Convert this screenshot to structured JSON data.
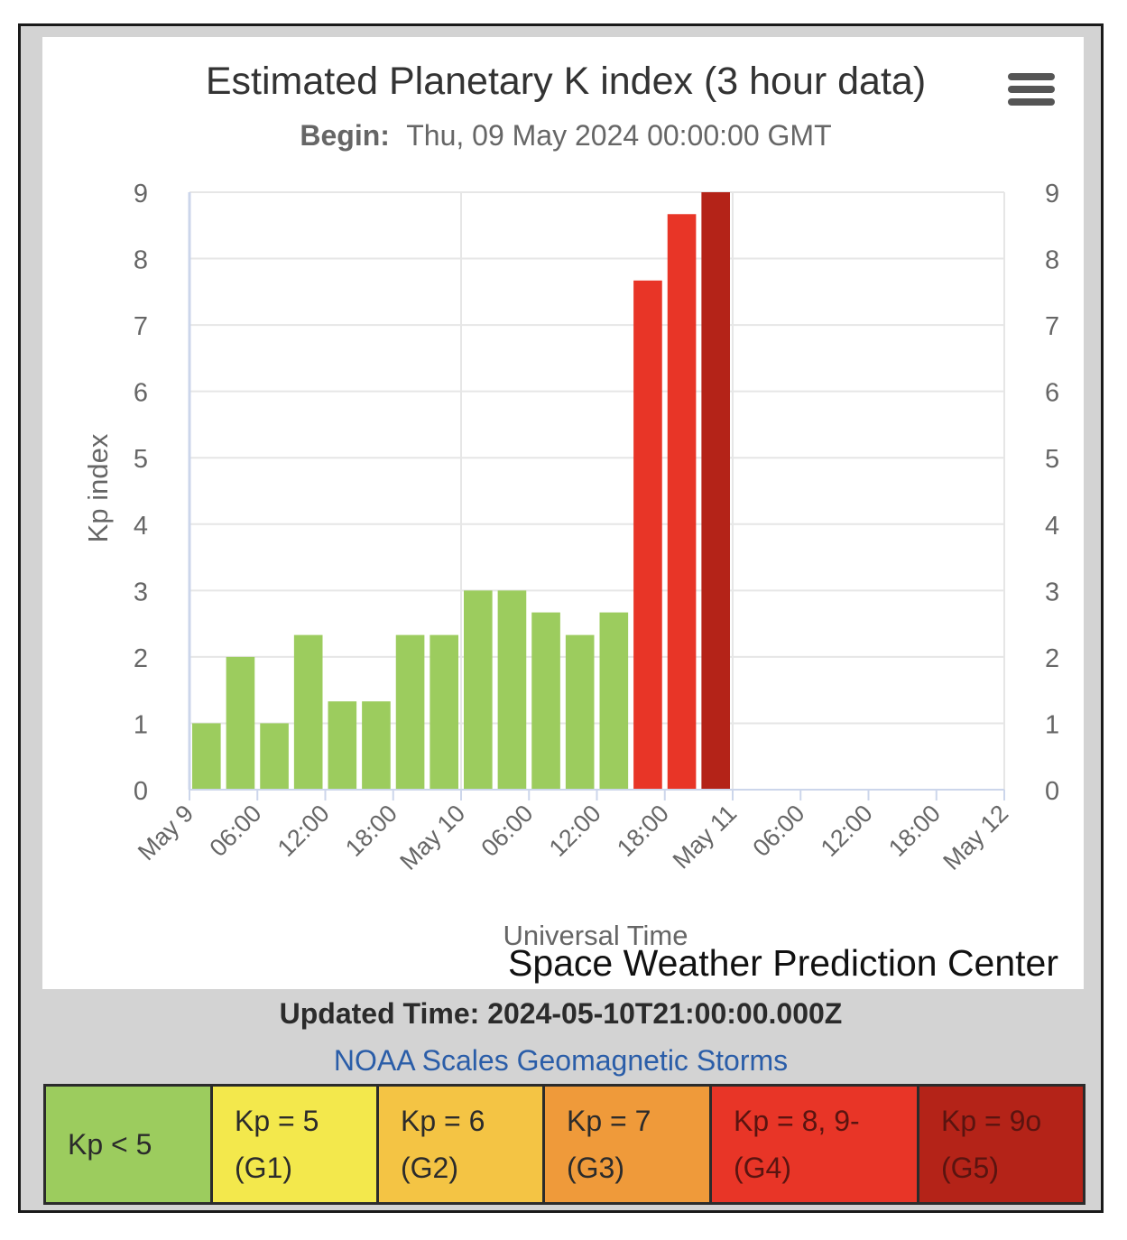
{
  "chart": {
    "title": "Estimated Planetary K index (3 hour data)",
    "subtitle_label": "Begin:",
    "subtitle_value": "Thu, 09 May 2024 00:00:00 GMT",
    "credit": "Space Weather Prediction Center"
  },
  "chart_data": {
    "type": "bar",
    "title": "Estimated Planetary K index (3 hour data)",
    "xlabel": "Universal Time",
    "ylabel": "Kp index",
    "ylim": [
      0,
      9
    ],
    "yticks": [
      0,
      1,
      2,
      3,
      4,
      5,
      6,
      7,
      8,
      9
    ],
    "x_range": [
      "2024-05-09T00:00Z",
      "2024-05-12T00:00Z"
    ],
    "xtick_labels": [
      "May 9",
      "06:00",
      "12:00",
      "18:00",
      "May 10",
      "06:00",
      "12:00",
      "18:00",
      "May 11",
      "06:00",
      "12:00",
      "18:00",
      "May 12"
    ],
    "interval_hours": 3,
    "categories": [
      "2024-05-09T00:00Z",
      "2024-05-09T03:00Z",
      "2024-05-09T06:00Z",
      "2024-05-09T09:00Z",
      "2024-05-09T12:00Z",
      "2024-05-09T15:00Z",
      "2024-05-09T18:00Z",
      "2024-05-09T21:00Z",
      "2024-05-10T00:00Z",
      "2024-05-10T03:00Z",
      "2024-05-10T06:00Z",
      "2024-05-10T09:00Z",
      "2024-05-10T12:00Z",
      "2024-05-10T15:00Z",
      "2024-05-10T18:00Z",
      "2024-05-10T21:00Z"
    ],
    "values": [
      1,
      2,
      1,
      2.33,
      1.33,
      1.33,
      2.33,
      2.33,
      3,
      3,
      2.67,
      2.33,
      2.67,
      7.67,
      8.67,
      9
    ],
    "colors": [
      "#9ccc5e",
      "#9ccc5e",
      "#9ccc5e",
      "#9ccc5e",
      "#9ccc5e",
      "#9ccc5e",
      "#9ccc5e",
      "#9ccc5e",
      "#9ccc5e",
      "#9ccc5e",
      "#9ccc5e",
      "#9ccc5e",
      "#9ccc5e",
      "#e83527",
      "#e83527",
      "#b42318"
    ],
    "grid": true,
    "secondary_y_axis": true
  },
  "footer": {
    "updated": "Updated Time: 2024-05-10T21:00:00.000Z",
    "noaa_link": "NOAA Scales Geomagnetic Storms"
  },
  "scale_legend": [
    {
      "line1": "Kp < 5",
      "line2": "",
      "bg": "#9ccc5e",
      "fg": "#2b2b2b"
    },
    {
      "line1": "Kp = 5",
      "line2": "(G1)",
      "bg": "#f3e84c",
      "fg": "#2b2b2b"
    },
    {
      "line1": "Kp = 6",
      "line2": "(G2)",
      "bg": "#f4c444",
      "fg": "#2b2b2b"
    },
    {
      "line1": "Kp = 7",
      "line2": "(G3)",
      "bg": "#ef9a3a",
      "fg": "#2b2b2b"
    },
    {
      "line1": "Kp = 8, 9-",
      "line2": "(G4)",
      "bg": "#e83527",
      "fg": "#5a1410"
    },
    {
      "line1": "Kp = 9o",
      "line2": "(G5)",
      "bg": "#b42318",
      "fg": "#5a1410"
    }
  ]
}
